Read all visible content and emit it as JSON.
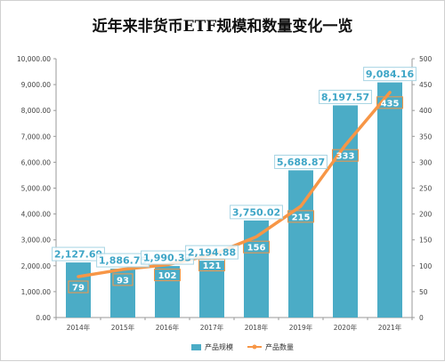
{
  "chart_data": {
    "type": "bar",
    "title": "近年来非货币ETF规模和数量变化一览",
    "categories": [
      "2014年",
      "2015年",
      "2016年",
      "2017年",
      "2018年",
      "2019年",
      "2020年",
      "2021年"
    ],
    "series": [
      {
        "name": "产品规模",
        "type": "bar",
        "axis": "left",
        "values": [
          2127.69,
          1886.75,
          1990.33,
          2194.88,
          3750.02,
          5688.87,
          8197.57,
          9084.16
        ],
        "labels": [
          "2,127.69",
          "1,886.75",
          "1,990.33",
          "2,194.88",
          "3,750.02",
          "5,688.87",
          "8,197.57",
          "9,084.16"
        ],
        "color": "#4bacc6"
      },
      {
        "name": "产品数量",
        "type": "line",
        "axis": "right",
        "values": [
          79,
          93,
          102,
          121,
          156,
          215,
          333,
          435
        ],
        "labels": [
          "79",
          "93",
          "102",
          "121",
          "156",
          "215",
          "333",
          "435"
        ],
        "color": "#f79646"
      }
    ],
    "y_left": {
      "range": [
        0,
        10000
      ],
      "ticks": [
        "0.00",
        "1,000.00",
        "2,000.00",
        "3,000.00",
        "4,000.00",
        "5,000.00",
        "6,000.00",
        "7,000.00",
        "8,000.00",
        "9,000.00",
        "10,000.00"
      ]
    },
    "y_right": {
      "range": [
        0,
        500
      ],
      "ticks": [
        "0",
        "50",
        "100",
        "150",
        "200",
        "250",
        "300",
        "350",
        "400",
        "450",
        "500"
      ]
    },
    "grid": false,
    "legend": "bottom"
  }
}
